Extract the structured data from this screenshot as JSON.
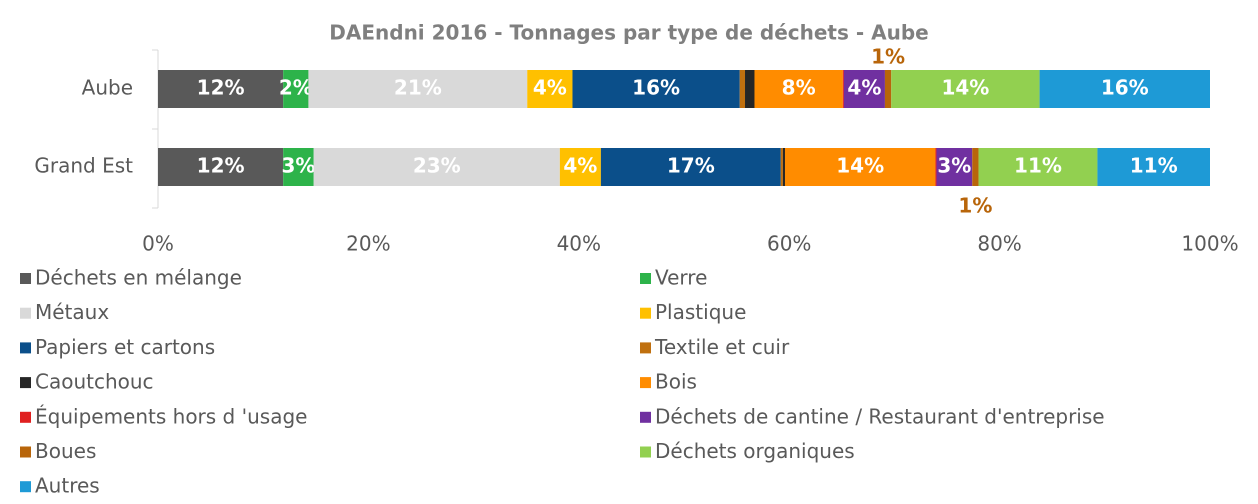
{
  "chart_data": {
    "type": "stacked-bar-horizontal",
    "title": "DAEndni 2016 - Tonnages par type de déchets - Aube",
    "categories": [
      "Aube",
      "Grand Est"
    ],
    "xlim": [
      0,
      100
    ],
    "xticks": [
      {
        "value": 0,
        "label": "0%"
      },
      {
        "value": 20,
        "label": "20%"
      },
      {
        "value": 40,
        "label": "40%"
      },
      {
        "value": 60,
        "label": "60%"
      },
      {
        "value": 80,
        "label": "80%"
      },
      {
        "value": 100,
        "label": "100%"
      }
    ],
    "series": [
      {
        "name": "Déchets en mélange",
        "color": "#595959",
        "values": [
          11.9,
          11.9
        ],
        "value_labels": [
          "12%",
          "12%"
        ]
      },
      {
        "name": "Verre",
        "color": "#2db34a",
        "values": [
          2.4,
          2.9
        ],
        "value_labels": [
          "2%",
          "3%"
        ]
      },
      {
        "name": "Métaux",
        "color": "#d9d9d9",
        "values": [
          20.8,
          23.4
        ],
        "value_labels": [
          "21%",
          "23%"
        ]
      },
      {
        "name": "Plastique",
        "color": "#ffc000",
        "values": [
          4.3,
          3.9
        ],
        "value_labels": [
          "4%",
          "4%"
        ]
      },
      {
        "name": "Papiers et cartons",
        "color": "#0b4f8a",
        "values": [
          15.9,
          17.1
        ],
        "value_labels": [
          "16%",
          "17%"
        ]
      },
      {
        "name": "Textile et cuir",
        "color": "#c0700f",
        "values": [
          0.5,
          0.2
        ]
      },
      {
        "name": "Caoutchouc",
        "color": "#262626",
        "values": [
          0.9,
          0.2
        ]
      },
      {
        "name": "Bois",
        "color": "#ff8c00",
        "values": [
          8.4,
          14.3
        ],
        "value_labels": [
          "8%",
          "14%"
        ]
      },
      {
        "name": "Équipements hors d 'usage",
        "color": "#e02020",
        "values": [
          0.1,
          0.1
        ]
      },
      {
        "name": "Déchets de cantine / Restaurant d'entreprise",
        "color": "#7030a0",
        "values": [
          3.9,
          3.4
        ],
        "value_labels": [
          "4%",
          "3%"
        ]
      },
      {
        "name": "Boues",
        "color": "#b8650a",
        "values": [
          0.6,
          0.6
        ],
        "value_labels": [
          "1%",
          "1%"
        ]
      },
      {
        "name": "Déchets organiques",
        "color": "#92d050",
        "values": [
          14.1,
          11.3
        ],
        "value_labels": [
          "14%",
          "11%"
        ]
      },
      {
        "name": "Autres",
        "color": "#1e9ad6",
        "values": [
          16.2,
          10.7
        ],
        "value_labels": [
          "16%",
          "11%"
        ]
      }
    ]
  }
}
